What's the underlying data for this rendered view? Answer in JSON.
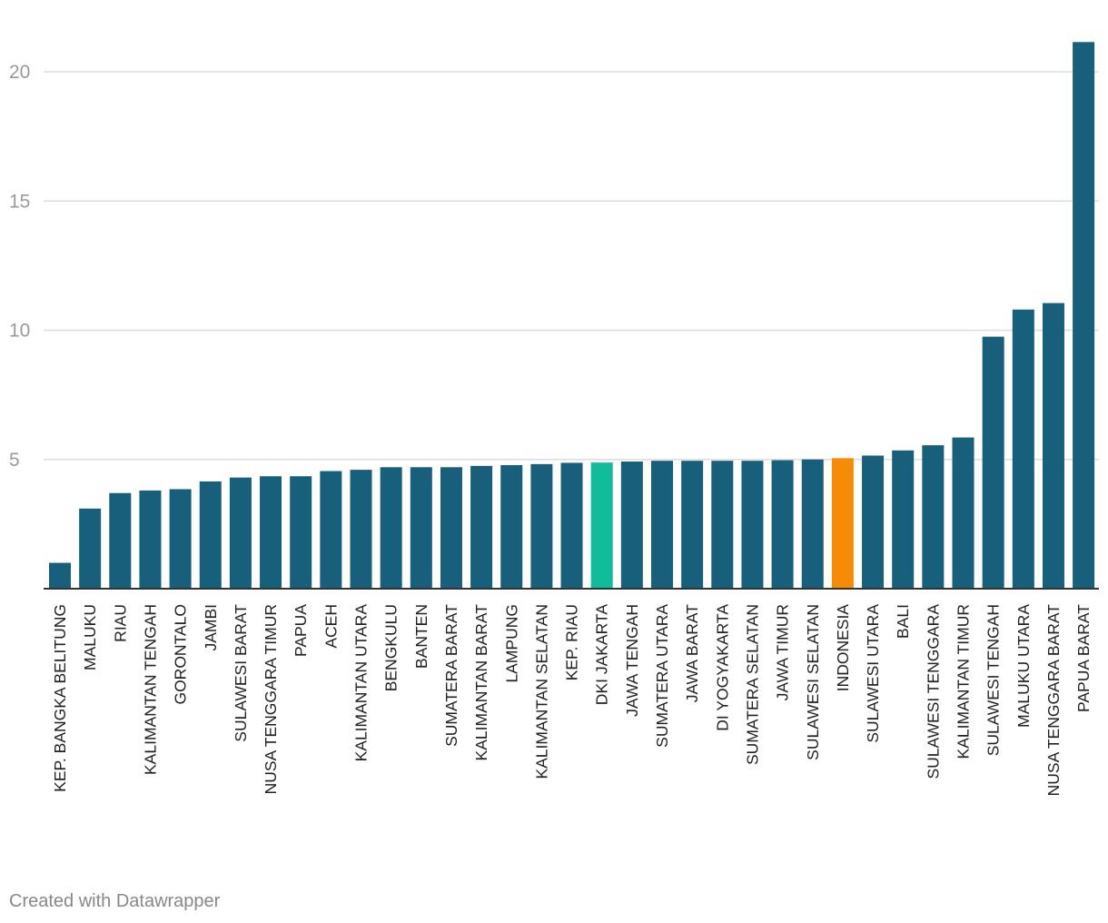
{
  "chart_data": {
    "type": "bar",
    "categories": [
      "KEP. BANGKA BELITUNG",
      "MALUKU",
      "RIAU",
      "KALIMANTAN TENGAH",
      "GORONTALO",
      "JAMBI",
      "SULAWESI BARAT",
      "NUSA TENGGARA TIMUR",
      "PAPUA",
      "ACEH",
      "KALIMANTAN UTARA",
      "BENGKULU",
      "BANTEN",
      "SUMATERA BARAT",
      "KALIMANTAN BARAT",
      "LAMPUNG",
      "KALIMANTAN SELATAN",
      "KEP. RIAU",
      "DKI JAKARTA",
      "JAWA TENGAH",
      "SUMATERA UTARA",
      "JAWA BARAT",
      "DI YOGYAKARTA",
      "SUMATERA SELATAN",
      "JAWA TIMUR",
      "SULAWESI SELATAN",
      "INDONESIA",
      "SULAWESI UTARA",
      "BALI",
      "SULAWESI TENGGARA",
      "KALIMANTAN TIMUR",
      "SULAWESI TENGAH",
      "MALUKU UTARA",
      "NUSA TENGGARA BARAT",
      "PAPUA BARAT"
    ],
    "values": [
      1.0,
      3.1,
      3.7,
      3.8,
      3.85,
      4.15,
      4.3,
      4.35,
      4.35,
      4.55,
      4.6,
      4.7,
      4.7,
      4.7,
      4.75,
      4.78,
      4.82,
      4.87,
      4.88,
      4.92,
      4.95,
      4.95,
      4.95,
      4.95,
      4.97,
      5.0,
      5.05,
      5.15,
      5.35,
      5.55,
      5.85,
      9.75,
      10.8,
      11.05,
      21.15
    ],
    "highlight": {
      "DKI JAKARTA": "#10bc9a",
      "INDONESIA": "#f58b07"
    },
    "bar_color": "#175f7a",
    "yticks": [
      5,
      10,
      15,
      20
    ],
    "ylim": [
      0,
      22
    ],
    "grid": true
  },
  "footer": {
    "credit": "Created with Datawrapper"
  }
}
